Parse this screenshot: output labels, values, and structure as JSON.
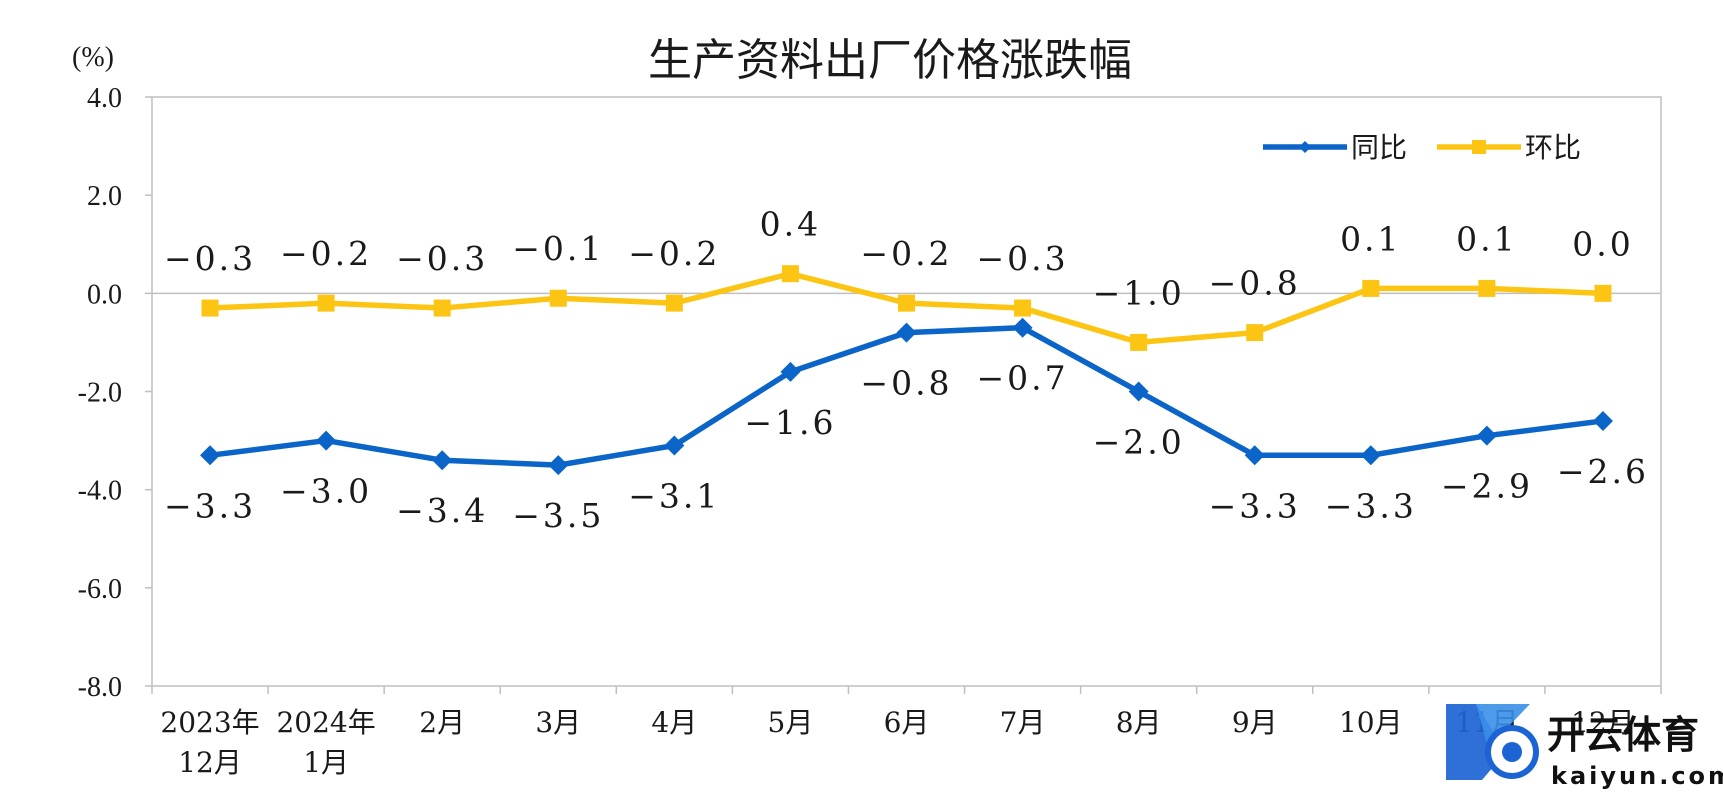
{
  "chart_data": {
    "type": "line",
    "title": "生产资料出厂价格涨跌幅",
    "unit_label": "(%)",
    "ylim": [
      -8.0,
      4.0
    ],
    "yticks": [
      "4.0",
      "2.0",
      "0.0",
      "-2.0",
      "-4.0",
      "-6.0",
      "-8.0"
    ],
    "ytick_values": [
      4,
      2,
      0,
      -2,
      -4,
      -6,
      -8
    ],
    "categories": [
      [
        "2023年",
        "12月"
      ],
      [
        "2024年",
        "1月"
      ],
      [
        "2月"
      ],
      [
        "3月"
      ],
      [
        "4月"
      ],
      [
        "5月"
      ],
      [
        "6月"
      ],
      [
        "7月"
      ],
      [
        "8月"
      ],
      [
        "9月"
      ],
      [
        "10月"
      ],
      [
        "11月"
      ],
      [
        "12月"
      ]
    ],
    "series": [
      {
        "name": "同比",
        "color": "#0b64c8",
        "marker": "diamond",
        "values": [
          -3.3,
          -3.0,
          -3.4,
          -3.5,
          -3.1,
          -1.6,
          -0.8,
          -0.7,
          -2.0,
          -3.3,
          -3.3,
          -2.9,
          -2.6
        ],
        "labels": [
          "-3.3",
          "-3.0",
          "-3.4",
          "-3.5",
          "-3.1",
          "-1.6",
          "-0.8",
          "-0.7",
          "-2.0",
          "-3.3",
          "-3.3",
          "-2.9",
          "-2.6"
        ]
      },
      {
        "name": "环比",
        "color": "#fcc514",
        "marker": "square",
        "values": [
          -0.3,
          -0.2,
          -0.3,
          -0.1,
          -0.2,
          0.4,
          -0.2,
          -0.3,
          -1.0,
          -0.8,
          0.1,
          0.1,
          0.0
        ],
        "labels": [
          "-0.3",
          "-0.2",
          "-0.3",
          "-0.1",
          "-0.2",
          "0.4",
          "-0.2",
          "-0.3",
          "-1.0",
          "-0.8",
          "0.1",
          "0.1",
          "0.0"
        ]
      }
    ],
    "grid": false,
    "legend_position": "top-right"
  },
  "watermark": {
    "brand": "开云体育",
    "site": "kaiyun.com",
    "icon": "kaiyun-logo-icon",
    "colors": {
      "blue": "#1c64d4",
      "dark": "#111111"
    }
  }
}
